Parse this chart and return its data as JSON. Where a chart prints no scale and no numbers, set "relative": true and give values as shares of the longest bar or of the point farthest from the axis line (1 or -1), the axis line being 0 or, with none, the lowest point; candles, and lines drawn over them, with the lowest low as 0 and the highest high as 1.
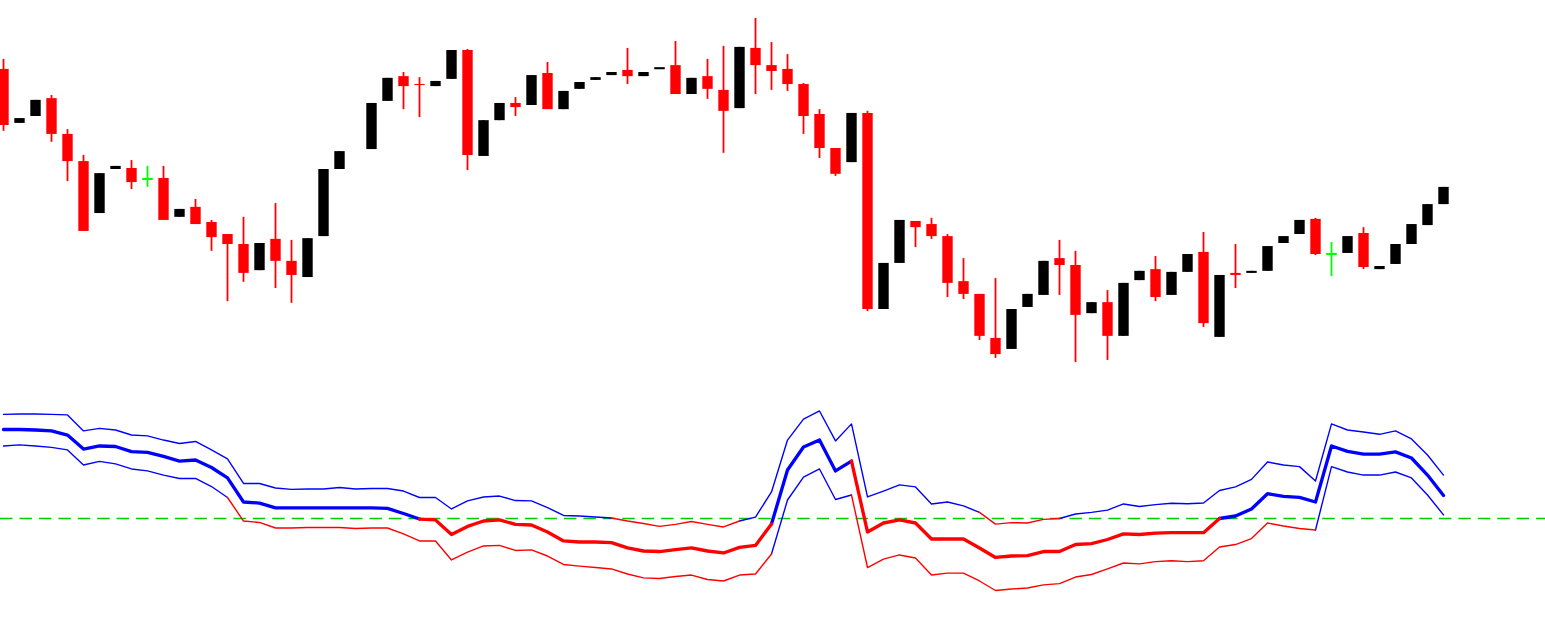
{
  "chart_data": [
    {
      "type": "candlestick",
      "relative": true,
      "categories": [
        null,
        null,
        null,
        null,
        null,
        null,
        null,
        null,
        null,
        null,
        null,
        null,
        null,
        null,
        null,
        null,
        null,
        null,
        null,
        null,
        null,
        null,
        null,
        null,
        null,
        null,
        null,
        null,
        null,
        null,
        null,
        null,
        null,
        null,
        null,
        null,
        null,
        null,
        null,
        null,
        null,
        null,
        null,
        null,
        null,
        null,
        null,
        null,
        null,
        null,
        null,
        null,
        null,
        null,
        null,
        null,
        null,
        null,
        null,
        null,
        null,
        null,
        null,
        null,
        null,
        null,
        null,
        null,
        null,
        null,
        null,
        null,
        null,
        null,
        null,
        null,
        null,
        null,
        null,
        null,
        null,
        null,
        null,
        null,
        null,
        null,
        null,
        null,
        null,
        null,
        null
      ],
      "ohlc": [
        [
          0.852,
          0.881,
          0.672,
          0.689
        ],
        [
          0.695,
          0.709,
          0.695,
          0.709
        ],
        [
          0.715,
          0.762,
          0.715,
          0.762
        ],
        [
          0.767,
          0.776,
          0.64,
          0.663
        ],
        [
          0.663,
          0.677,
          0.526,
          0.584
        ],
        [
          0.584,
          0.602,
          0.381,
          0.381
        ],
        [
          0.433,
          0.549,
          0.433,
          0.549
        ],
        [
          0.561,
          0.57,
          0.561,
          0.57
        ],
        [
          0.564,
          0.587,
          0.503,
          0.523
        ],
        [
          0.532,
          0.57,
          0.509,
          0.532
        ],
        [
          0.535,
          0.57,
          0.413,
          0.413
        ],
        [
          0.422,
          0.445,
          0.422,
          0.445
        ],
        [
          0.451,
          0.474,
          0.401,
          0.401
        ],
        [
          0.407,
          0.413,
          0.323,
          0.363
        ],
        [
          0.372,
          0.372,
          0.177,
          0.343
        ],
        [
          0.343,
          0.422,
          0.233,
          0.259
        ],
        [
          0.267,
          0.346,
          0.267,
          0.346
        ],
        [
          0.358,
          0.462,
          0.215,
          0.294
        ],
        [
          0.294,
          0.355,
          0.172,
          0.253
        ],
        [
          0.247,
          0.36,
          0.247,
          0.36
        ],
        [
          0.366,
          0.561,
          0.366,
          0.561
        ],
        [
          0.561,
          0.613,
          0.561,
          0.613
        ],
        null,
        [
          0.619,
          0.753,
          0.619,
          0.753
        ],
        [
          0.759,
          0.826,
          0.759,
          0.826
        ],
        [
          0.831,
          0.843,
          0.735,
          0.802
        ],
        [
          0.808,
          0.828,
          0.712,
          0.805
        ],
        [
          0.802,
          0.817,
          0.802,
          0.817
        ],
        [
          0.823,
          0.907,
          0.823,
          0.907
        ],
        [
          0.907,
          0.91,
          0.558,
          0.602
        ],
        [
          0.599,
          0.703,
          0.599,
          0.703
        ],
        [
          0.703,
          0.753,
          0.703,
          0.753
        ],
        [
          0.753,
          0.77,
          0.715,
          0.741
        ],
        [
          0.747,
          0.834,
          0.747,
          0.834
        ],
        [
          0.84,
          0.872,
          0.735,
          0.735
        ],
        [
          0.735,
          0.788,
          0.735,
          0.788
        ],
        [
          0.794,
          0.814,
          0.794,
          0.814
        ],
        [
          0.82,
          0.828,
          0.82,
          0.828
        ],
        [
          0.834,
          0.843,
          0.834,
          0.843
        ],
        [
          0.849,
          0.913,
          0.808,
          0.831
        ],
        [
          0.831,
          0.843,
          0.831,
          0.843
        ],
        [
          0.854,
          0.854,
          0.854,
          0.854
        ],
        [
          0.863,
          0.933,
          0.779,
          0.779
        ],
        [
          0.779,
          0.826,
          0.779,
          0.826
        ],
        [
          0.831,
          0.881,
          0.765,
          0.794
        ],
        [
          0.791,
          0.919,
          0.608,
          0.73
        ],
        [
          0.738,
          0.916,
          0.738,
          0.916
        ],
        [
          0.913,
          1,
          0.779,
          0.863
        ],
        [
          0.863,
          0.93,
          0.791,
          0.846
        ],
        [
          0.852,
          0.895,
          0.788,
          0.808
        ],
        [
          0.808,
          0.811,
          0.663,
          0.715
        ],
        [
          0.721,
          0.735,
          0.593,
          0.622
        ],
        [
          0.622,
          0.622,
          0.541,
          0.547
        ],
        [
          0.581,
          0.724,
          0.581,
          0.724
        ],
        [
          0.724,
          0.73,
          0.148,
          0.154
        ],
        [
          0.154,
          0.288,
          0.154,
          0.288
        ],
        [
          0.288,
          0.413,
          0.288,
          0.413
        ],
        [
          0.41,
          0.41,
          0.334,
          0.392
        ],
        [
          0.401,
          0.419,
          0.358,
          0.366
        ],
        [
          0.366,
          0.372,
          0.189,
          0.23
        ],
        [
          0.235,
          0.302,
          0.183,
          0.198
        ],
        [
          0.198,
          0.198,
          0.064,
          0.076
        ],
        [
          0.07,
          0.244,
          0.012,
          0.023
        ],
        [
          0.038,
          0.154,
          0.038,
          0.154
        ],
        [
          0.16,
          0.198,
          0.16,
          0.198
        ],
        [
          0.195,
          0.294,
          0.195,
          0.294
        ],
        [
          0.302,
          0.355,
          0.195,
          0.282
        ],
        [
          0.282,
          0.323,
          0,
          0.137
        ],
        [
          0.142,
          0.174,
          0.142,
          0.174
        ],
        [
          0.174,
          0.209,
          0.006,
          0.076
        ],
        [
          0.076,
          0.23,
          0.076,
          0.23
        ],
        [
          0.238,
          0.265,
          0.238,
          0.265
        ],
        [
          0.27,
          0.308,
          0.177,
          0.189
        ],
        [
          0.195,
          0.262,
          0.195,
          0.262
        ],
        [
          0.262,
          0.314,
          0.262,
          0.314
        ],
        [
          0.32,
          0.378,
          0.102,
          0.113
        ],
        [
          0.073,
          0.253,
          0.073,
          0.253
        ],
        [
          0.259,
          0.343,
          0.215,
          0.253
        ],
        [
          0.259,
          0.265,
          0.259,
          0.265
        ],
        [
          0.265,
          0.337,
          0.265,
          0.337
        ],
        [
          0.346,
          0.366,
          0.346,
          0.366
        ],
        [
          0.372,
          0.413,
          0.372,
          0.413
        ],
        [
          0.416,
          0.419,
          0.311,
          0.314
        ],
        [
          0.314,
          0.349,
          0.25,
          0.314
        ],
        [
          0.317,
          0.366,
          0.317,
          0.366
        ],
        [
          0.375,
          0.392,
          0.27,
          0.276
        ],
        [
          0.27,
          0.279,
          0.27,
          0.279
        ],
        [
          0.285,
          0.343,
          0.285,
          0.343
        ],
        [
          0.343,
          0.401,
          0.343,
          0.401
        ],
        [
          0.398,
          0.459,
          0.398,
          0.459
        ],
        [
          0.459,
          0.509,
          0.459,
          0.509
        ]
      ],
      "colors": [
        "#ff0000",
        "#000000",
        "#000000",
        "#ff0000",
        "#ff0000",
        "#ff0000",
        "#000000",
        "#000000",
        "#ff0000",
        "#00ff00",
        "#ff0000",
        "#000000",
        "#ff0000",
        "#ff0000",
        "#ff0000",
        "#ff0000",
        "#000000",
        "#ff0000",
        "#ff0000",
        "#000000",
        "#000000",
        "#000000",
        null,
        "#000000",
        "#000000",
        "#ff0000",
        "#ff0000",
        "#000000",
        "#000000",
        "#ff0000",
        "#000000",
        "#000000",
        "#ff0000",
        "#000000",
        "#ff0000",
        "#000000",
        "#000000",
        "#000000",
        "#000000",
        "#ff0000",
        "#000000",
        "#000000",
        "#ff0000",
        "#000000",
        "#ff0000",
        "#ff0000",
        "#000000",
        "#ff0000",
        "#ff0000",
        "#ff0000",
        "#ff0000",
        "#ff0000",
        "#ff0000",
        "#000000",
        "#ff0000",
        "#000000",
        "#000000",
        "#ff0000",
        "#ff0000",
        "#ff0000",
        "#ff0000",
        "#ff0000",
        "#ff0000",
        "#000000",
        "#000000",
        "#000000",
        "#ff0000",
        "#ff0000",
        "#000000",
        "#ff0000",
        "#000000",
        "#000000",
        "#ff0000",
        "#000000",
        "#000000",
        "#ff0000",
        "#000000",
        "#ff0000",
        "#000000",
        "#000000",
        "#000000",
        "#000000",
        "#ff0000",
        "#00ff00",
        "#000000",
        "#ff0000",
        "#000000",
        "#000000",
        "#000000",
        "#000000",
        "#000000"
      ]
    },
    {
      "type": "line",
      "relative": true,
      "categories": [
        null,
        null,
        null,
        null,
        null,
        null,
        null,
        null,
        null,
        null,
        null,
        null,
        null,
        null,
        null,
        null,
        null,
        null,
        null,
        null,
        null,
        null,
        null,
        null,
        null,
        null,
        null,
        null,
        null,
        null,
        null,
        null,
        null,
        null,
        null,
        null,
        null,
        null,
        null,
        null,
        null,
        null,
        null,
        null,
        null,
        null,
        null,
        null,
        null,
        null,
        null,
        null,
        null,
        null,
        null,
        null,
        null,
        null,
        null,
        null,
        null,
        null,
        null,
        null,
        null,
        null,
        null,
        null,
        null,
        null,
        null,
        null,
        null,
        null,
        null,
        null,
        null,
        null,
        null,
        null,
        null,
        null,
        null,
        null,
        null,
        null,
        null,
        null,
        null,
        null,
        null
      ],
      "series": [
        {
          "color": "#0000ff",
          "values": [
            0.981,
            0.983,
            0.983,
            0.981,
            0.978,
            0.889,
            0.903,
            0.894,
            0.866,
            0.861,
            0.838,
            0.819,
            0.83,
            0.783,
            0.733,
            0.596,
            0.596,
            0.571,
            0.563,
            0.565,
            0.565,
            0.574,
            0.565,
            0.568,
            0.568,
            0.554,
            0.518,
            0.518,
            0.454,
            0.499,
            0.521,
            0.526,
            0.501,
            0.499,
            0.462,
            0.418,
            0.415,
            0.409,
            0.404,
            null,
            null,
            null,
            null,
            null,
            null,
            null,
            0.387,
            0.409,
            0.549,
            0.838,
            0.955,
            1,
            0.833,
            0.928,
            0.521,
            0.554,
            0.588,
            0.577,
            0.482,
            0.493,
            0.471,
            0.435,
            null,
            null,
            null,
            null,
            0.401,
            0.426,
            0.435,
            0.448,
            0.482,
            0.468,
            0.478,
            0.486,
            0.483,
            0.487,
            0.557,
            0.577,
            0.619,
            0.716,
            0.699,
            0.69,
            0.61,
            0.928,
            0.894,
            0.883,
            0.87,
            0.889,
            0.844,
            0.755,
            0.643
          ]
        },
        {
          "color": "#ff0000",
          "values": [
            null,
            null,
            null,
            null,
            null,
            null,
            null,
            null,
            null,
            null,
            null,
            null,
            null,
            null,
            null,
            null,
            null,
            null,
            null,
            null,
            null,
            null,
            null,
            null,
            null,
            null,
            null,
            null,
            null,
            null,
            null,
            null,
            null,
            null,
            null,
            null,
            null,
            null,
            0.404,
            0.387,
            0.373,
            0.357,
            0.368,
            0.384,
            0.368,
            0.354,
            0.387,
            null,
            null,
            null,
            null,
            null,
            null,
            null,
            null,
            null,
            null,
            null,
            null,
            null,
            null,
            0.435,
            0.37,
            0.378,
            0.376,
            0.396,
            0.401,
            null,
            null,
            null,
            null,
            null,
            null,
            null,
            null,
            null,
            null,
            null,
            null,
            null,
            null,
            null,
            null,
            null,
            null,
            null,
            null,
            null,
            null,
            null,
            null
          ]
        },
        {
          "color": "#0000ff",
          "values": [
            0.897,
            0.897,
            0.894,
            0.889,
            0.866,
            0.788,
            0.805,
            0.802,
            0.774,
            0.769,
            0.747,
            0.721,
            0.727,
            0.685,
            0.627,
            0.493,
            0.487,
            0.46,
            0.46,
            0.46,
            0.46,
            0.46,
            0.46,
            0.46,
            0.457,
            0.429,
            0.398,
            null,
            null,
            null,
            null,
            null,
            null,
            null,
            null,
            null,
            null,
            null,
            null,
            null,
            null,
            null,
            null,
            null,
            null,
            null,
            null,
            null,
            0.37,
            0.671,
            0.799,
            0.838,
            0.666,
            0.721,
            null,
            null,
            null,
            null,
            null,
            null,
            null,
            null,
            null,
            null,
            null,
            null,
            null,
            null,
            null,
            null,
            null,
            null,
            null,
            null,
            null,
            null,
            0.401,
            0.415,
            0.454,
            0.539,
            0.524,
            0.519,
            0.493,
            0.805,
            0.775,
            0.76,
            0.76,
            0.772,
            0.738,
            0.643,
            0.529
          ]
        },
        {
          "color": "#ff0000",
          "values": [
            null,
            null,
            null,
            null,
            null,
            null,
            null,
            null,
            null,
            null,
            null,
            null,
            null,
            null,
            null,
            null,
            null,
            null,
            null,
            null,
            null,
            null,
            null,
            null,
            null,
            null,
            0.398,
            0.393,
            0.312,
            0.357,
            0.387,
            0.393,
            0.368,
            0.365,
            0.326,
            0.276,
            0.27,
            0.27,
            0.267,
            0.237,
            0.22,
            0.217,
            0.228,
            0.237,
            0.22,
            0.209,
            0.24,
            0.251,
            0.37,
            null,
            null,
            null,
            null,
            0.721,
            0.326,
            0.376,
            0.393,
            0.376,
            0.287,
            0.287,
            0.287,
            0.237,
            0.184,
            0.192,
            0.194,
            0.217,
            0.217,
            0.256,
            0.261,
            0.284,
            0.315,
            0.312,
            0.32,
            0.322,
            0.322,
            0.322,
            0.401,
            null,
            null,
            null,
            null,
            null,
            null,
            null,
            null,
            null,
            null,
            null,
            null,
            null,
            null
          ]
        },
        {
          "color": "#0000ff",
          "values": [
            0.805,
            0.811,
            0.805,
            0.797,
            0.783,
            0.699,
            0.719,
            0.705,
            0.677,
            0.666,
            0.643,
            0.624,
            0.624,
            0.579,
            0.518,
            null,
            null,
            null,
            null,
            null,
            null,
            null,
            null,
            null,
            null,
            null,
            null,
            null,
            null,
            null,
            null,
            null,
            null,
            null,
            null,
            null,
            null,
            null,
            null,
            null,
            null,
            null,
            null,
            null,
            null,
            null,
            null,
            null,
            0.203,
            0.504,
            0.632,
            0.677,
            0.507,
            0.532,
            null,
            null,
            null,
            null,
            null,
            null,
            null,
            null,
            null,
            null,
            null,
            null,
            null,
            null,
            null,
            null,
            null,
            null,
            null,
            null,
            null,
            null,
            null,
            null,
            null,
            null,
            null,
            null,
            0.337,
            0.69,
            0.66,
            0.643,
            0.643,
            0.66,
            0.627,
            0.532,
            0.421
          ]
        },
        {
          "color": "#ff0000",
          "values": [
            null,
            null,
            null,
            null,
            null,
            null,
            null,
            null,
            null,
            null,
            null,
            null,
            null,
            null,
            0.518,
            0.387,
            0.379,
            0.348,
            0.348,
            0.351,
            0.351,
            0.351,
            0.345,
            0.348,
            0.348,
            0.315,
            0.276,
            0.276,
            0.17,
            0.214,
            0.248,
            0.251,
            0.223,
            0.226,
            0.192,
            0.145,
            0.136,
            0.128,
            0.12,
            0.092,
            0.07,
            0.067,
            0.078,
            0.086,
            0.061,
            0.053,
            0.086,
            0.092,
            0.203,
            null,
            null,
            null,
            null,
            0.532,
            0.128,
            0.175,
            0.198,
            0.181,
            0.086,
            0.097,
            0.097,
            0.053,
            0,
            0.008,
            0.014,
            0.031,
            0.038,
            0.075,
            0.089,
            0.12,
            0.153,
            0.148,
            0.161,
            0.166,
            0.161,
            0.166,
            0.242,
            0.256,
            0.289,
            0.376,
            0.359,
            0.345,
            0.337,
            null,
            null,
            null,
            null,
            null,
            null,
            null,
            null
          ]
        }
      ],
      "ref_lines": [
        {
          "axis": "y",
          "value": 0.401,
          "color": "#00cc00",
          "line_style": "dashed"
        }
      ]
    }
  ]
}
